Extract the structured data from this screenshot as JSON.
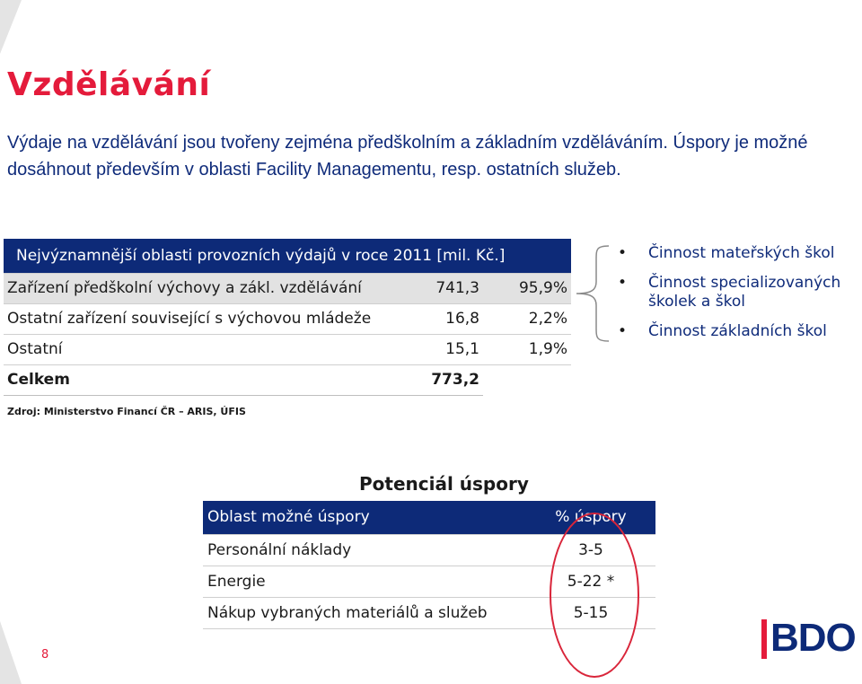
{
  "title": "Vzdělávání",
  "subtitle": "Výdaje na vzdělávání jsou tvořeny zejména předškolním a základním vzděláváním. Úspory je možné dosáhnout především v oblasti Facility Managementu, resp. ostatních služeb.",
  "expense_table": {
    "header": "Nejvýznamnější oblasti provozních výdajů v roce 2011 [mil. Kč.]",
    "rows": [
      {
        "label": "Zařízení předškolní výchovy a zákl. vzdělávání",
        "value": "741,3",
        "share": "95,9%"
      },
      {
        "label": "Ostatní zařízení související s výchovou mládeže",
        "value": "16,8",
        "share": "2,2%"
      },
      {
        "label": "Ostatní",
        "value": "15,1",
        "share": "1,9%"
      }
    ],
    "total": {
      "label": "Celkem",
      "value": "773,2"
    }
  },
  "source": "Zdroj: Ministerstvo Financí ČR – ARIS, ÚFIS",
  "bullets": [
    "Činnost mateřských škol",
    "Činnost specializovaných školek a škol",
    "Činnost základních škol"
  ],
  "savings": {
    "title": "Potenciál úspory",
    "col_area": "Oblast možné úspory",
    "col_percent": "% úspory",
    "rows": [
      {
        "area": "Personální náklady",
        "percent": "3-5"
      },
      {
        "area": "Energie",
        "percent": "5-22 *"
      },
      {
        "area": "Nákup vybraných materiálů a služeb",
        "percent": "5-15"
      }
    ]
  },
  "page_number": "8",
  "logo": {
    "text": "BDO",
    "brand_color": "#0d2a78",
    "accent_color": "#e41b3b"
  }
}
